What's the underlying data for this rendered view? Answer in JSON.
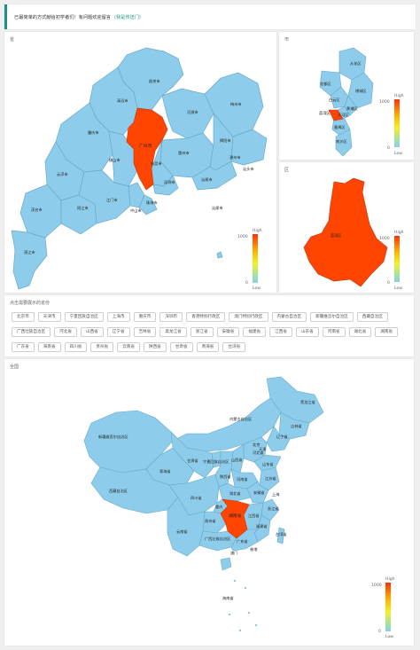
{
  "notice": {
    "text": "已最简单的方式献给初学者们！有问题欢迎留言",
    "link": "(我是传送门)"
  },
  "colors": {
    "highlight": "#ff4500",
    "region": "#8dcdeb",
    "border": "#6aa8c8",
    "accent": "#1f8f86"
  },
  "province_panel": {
    "title": "省",
    "cities": [
      "韶关市",
      "清远市",
      "河源市",
      "梅州市",
      "肇庆市",
      "广州市",
      "惠州市",
      "揭阳市",
      "潮州市",
      "佛山市",
      "东莞市",
      "汕头市",
      "云浮市",
      "汕尾市",
      "茂名市",
      "阳江市",
      "江门市",
      "中山市",
      "深圳市",
      "珠海市",
      "湛江市",
      "汕尾市"
    ],
    "selected": "广州市"
  },
  "city_panel": {
    "title": "市",
    "districts": [
      "从化区",
      "花都区",
      "增城区",
      "白云区",
      "黄埔区",
      "天河区",
      "番禺区",
      "南沙区",
      "荔湾区"
    ],
    "selected": "荔湾区"
  },
  "district_panel": {
    "title": "区",
    "name": "荔湾区"
  },
  "visual_map": {
    "high": "High",
    "low": "Low",
    "max": "1000",
    "min": "0"
  },
  "select_panel": {
    "title": "点击需要展示的省份",
    "provinces": [
      "北京市",
      "天津市",
      "宁夏回族自治区",
      "上海市",
      "重庆市",
      "深圳市",
      "香港特别行政区",
      "澳门特别行政区",
      "内蒙古自治区",
      "新疆维吾尔自治区",
      "西藏自治区",
      "广西壮族自治区",
      "河北省",
      "山西省",
      "辽宁省",
      "吉林省",
      "黑龙江省",
      "浙江省",
      "安徽省",
      "福建省",
      "江西省",
      "山东省",
      "河南省",
      "湖北省",
      "湖南省",
      "广东省",
      "海南省",
      "四川省",
      "贵州省",
      "云南省",
      "陕西省",
      "甘肃省",
      "青海省",
      "台湾省"
    ]
  },
  "nation_panel": {
    "title": "全国",
    "provinces": [
      "黑龙江省",
      "内蒙古自治区",
      "吉林省",
      "新疆维吾尔自治区",
      "辽宁省",
      "北京",
      "天津",
      "河北省",
      "山西省",
      "宁夏回族自治区",
      "山东省",
      "甘肃省",
      "青海省",
      "陕西省",
      "河南省",
      "江苏省",
      "西藏自治区",
      "四川省",
      "湖北省",
      "安徽省",
      "上海",
      "重庆",
      "浙江省",
      "湖南省",
      "江西省",
      "贵州省",
      "福建省",
      "台湾省",
      "云南省",
      "广西壮族自治区",
      "广东省",
      "香港",
      "澳门",
      "海南省"
    ],
    "selected": "湖南省"
  }
}
